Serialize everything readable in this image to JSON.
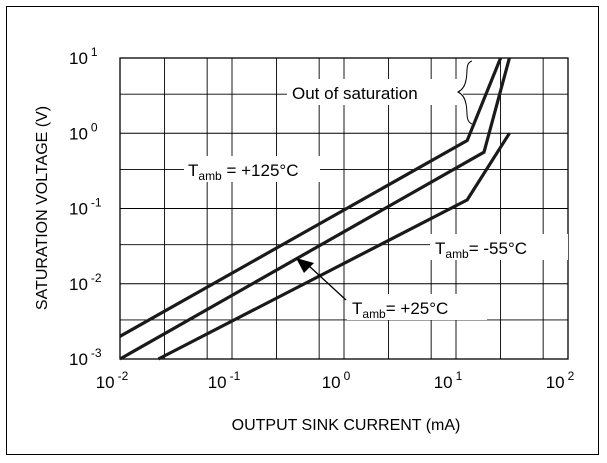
{
  "chart_data": {
    "type": "line",
    "xlabel": "OUTPUT SINK CURRENT (mA)",
    "ylabel": "SATURATION VOLTAGE (V)",
    "xscale": "log",
    "yscale": "log",
    "xlim": [
      0.01,
      100
    ],
    "ylim": [
      0.001,
      10
    ],
    "grid": true,
    "x_ticks": [
      {
        "base": "10",
        "exp": "-2",
        "value": 0.01
      },
      {
        "base": "10",
        "exp": "-1",
        "value": 0.1
      },
      {
        "base": "10",
        "exp": "0",
        "value": 1
      },
      {
        "base": "10",
        "exp": "1",
        "value": 10
      },
      {
        "base": "10",
        "exp": "2",
        "value": 100
      }
    ],
    "y_ticks": [
      {
        "base": "10",
        "exp": "-3",
        "value": 0.001
      },
      {
        "base": "10",
        "exp": "-2",
        "value": 0.01
      },
      {
        "base": "10",
        "exp": "-1",
        "value": 0.1
      },
      {
        "base": "10",
        "exp": "0",
        "value": 1
      },
      {
        "base": "10",
        "exp": "1",
        "value": 10
      }
    ],
    "series": [
      {
        "id": "t125",
        "x": [
          0.01,
          12.6,
          25
        ],
        "y": [
          0.002,
          0.8,
          10
        ]
      },
      {
        "id": "t25",
        "x": [
          0.01,
          17.8,
          30
        ],
        "y": [
          0.001,
          0.56,
          10
        ]
      },
      {
        "id": "tm55",
        "x": [
          0.022,
          12.6,
          30
        ],
        "y": [
          0.001,
          0.13,
          1
        ]
      }
    ],
    "annotations": {
      "out_of_saturation": "Out of saturation",
      "t125": {
        "main": "T",
        "sub": "amb",
        "rest": " = +125°C"
      },
      "tm55": {
        "main": "T",
        "sub": "amb",
        "rest": "= -55°C"
      },
      "t25": {
        "main": "T",
        "sub": "amb",
        "rest": "= +25°C"
      }
    }
  }
}
